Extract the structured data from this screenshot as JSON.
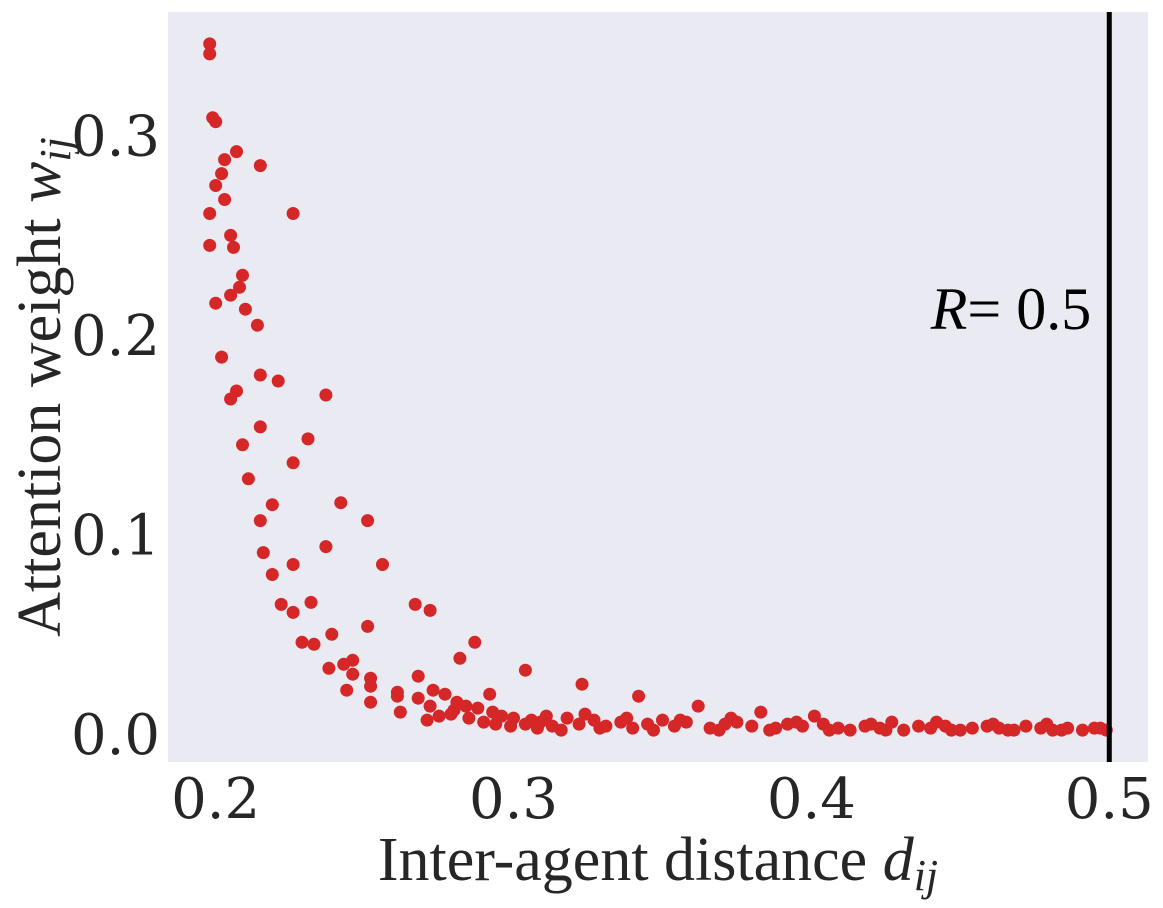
{
  "chart_data": {
    "type": "scatter",
    "xlabel": "Inter-agent distance",
    "xlabel_symbol": "d",
    "xlabel_subscript": "ij",
    "ylabel": "Attention weight",
    "ylabel_symbol": "w",
    "ylabel_subscript": "ij",
    "xlim": [
      0.184,
      0.513
    ],
    "ylim": [
      -0.014,
      0.362
    ],
    "xticks": [
      0.2,
      0.3,
      0.4,
      0.5
    ],
    "xtick_labels": [
      "0.2",
      "0.3",
      "0.4",
      "0.5"
    ],
    "yticks": [
      0.0,
      0.1,
      0.2,
      0.3
    ],
    "ytick_labels": [
      "0.0",
      "0.1",
      "0.2",
      "0.3"
    ],
    "grid": false,
    "background_color": "#eaeaf2",
    "point_color": "#d62728",
    "vline": {
      "x": 0.5,
      "color": "#000000",
      "label_symbol": "R",
      "label_text": "= 0.5"
    },
    "points": [
      [
        0.198,
        0.346
      ],
      [
        0.198,
        0.341
      ],
      [
        0.199,
        0.309
      ],
      [
        0.2,
        0.307
      ],
      [
        0.203,
        0.288
      ],
      [
        0.202,
        0.281
      ],
      [
        0.207,
        0.292
      ],
      [
        0.215,
        0.285
      ],
      [
        0.2,
        0.275
      ],
      [
        0.203,
        0.268
      ],
      [
        0.198,
        0.261
      ],
      [
        0.226,
        0.261
      ],
      [
        0.205,
        0.25
      ],
      [
        0.198,
        0.245
      ],
      [
        0.206,
        0.244
      ],
      [
        0.209,
        0.23
      ],
      [
        0.208,
        0.224
      ],
      [
        0.205,
        0.22
      ],
      [
        0.2,
        0.216
      ],
      [
        0.21,
        0.213
      ],
      [
        0.214,
        0.205
      ],
      [
        0.202,
        0.189
      ],
      [
        0.215,
        0.18
      ],
      [
        0.221,
        0.177
      ],
      [
        0.207,
        0.172
      ],
      [
        0.205,
        0.168
      ],
      [
        0.237,
        0.17
      ],
      [
        0.215,
        0.154
      ],
      [
        0.231,
        0.148
      ],
      [
        0.209,
        0.145
      ],
      [
        0.226,
        0.136
      ],
      [
        0.211,
        0.128
      ],
      [
        0.242,
        0.116
      ],
      [
        0.219,
        0.115
      ],
      [
        0.215,
        0.107
      ],
      [
        0.251,
        0.107
      ],
      [
        0.237,
        0.094
      ],
      [
        0.216,
        0.091
      ],
      [
        0.226,
        0.085
      ],
      [
        0.256,
        0.085
      ],
      [
        0.219,
        0.08
      ],
      [
        0.222,
        0.065
      ],
      [
        0.232,
        0.066
      ],
      [
        0.226,
        0.061
      ],
      [
        0.267,
        0.065
      ],
      [
        0.272,
        0.062
      ],
      [
        0.251,
        0.054
      ],
      [
        0.239,
        0.05
      ],
      [
        0.229,
        0.046
      ],
      [
        0.233,
        0.045
      ],
      [
        0.287,
        0.046
      ],
      [
        0.246,
        0.037
      ],
      [
        0.282,
        0.038
      ],
      [
        0.238,
        0.033
      ],
      [
        0.243,
        0.035
      ],
      [
        0.246,
        0.03
      ],
      [
        0.252,
        0.028
      ],
      [
        0.268,
        0.029
      ],
      [
        0.304,
        0.032
      ],
      [
        0.244,
        0.022
      ],
      [
        0.252,
        0.024
      ],
      [
        0.261,
        0.021
      ],
      [
        0.268,
        0.018
      ],
      [
        0.252,
        0.016
      ],
      [
        0.261,
        0.019
      ],
      [
        0.292,
        0.02
      ],
      [
        0.323,
        0.025
      ],
      [
        0.342,
        0.019
      ],
      [
        0.262,
        0.011
      ],
      [
        0.272,
        0.014
      ],
      [
        0.28,
        0.012
      ],
      [
        0.275,
        0.009
      ],
      [
        0.271,
        0.007
      ],
      [
        0.277,
        0.02
      ],
      [
        0.273,
        0.022
      ],
      [
        0.281,
        0.016
      ],
      [
        0.284,
        0.014
      ],
      [
        0.288,
        0.013
      ],
      [
        0.293,
        0.011
      ],
      [
        0.296,
        0.009
      ],
      [
        0.3,
        0.008
      ],
      [
        0.306,
        0.007
      ],
      [
        0.279,
        0.01
      ],
      [
        0.285,
        0.008
      ],
      [
        0.29,
        0.006
      ],
      [
        0.294,
        0.005
      ],
      [
        0.299,
        0.004
      ],
      [
        0.304,
        0.005
      ],
      [
        0.309,
        0.006
      ],
      [
        0.313,
        0.004
      ],
      [
        0.318,
        0.008
      ],
      [
        0.322,
        0.005
      ],
      [
        0.327,
        0.007
      ],
      [
        0.331,
        0.004
      ],
      [
        0.336,
        0.006
      ],
      [
        0.34,
        0.003
      ],
      [
        0.345,
        0.005
      ],
      [
        0.35,
        0.007
      ],
      [
        0.354,
        0.004
      ],
      [
        0.358,
        0.006
      ],
      [
        0.362,
        0.014
      ],
      [
        0.366,
        0.003
      ],
      [
        0.371,
        0.005
      ],
      [
        0.375,
        0.006
      ],
      [
        0.38,
        0.004
      ],
      [
        0.383,
        0.011
      ],
      [
        0.388,
        0.003
      ],
      [
        0.392,
        0.005
      ],
      [
        0.397,
        0.004
      ],
      [
        0.401,
        0.009
      ],
      [
        0.404,
        0.005
      ],
      [
        0.409,
        0.003
      ],
      [
        0.413,
        0.002
      ],
      [
        0.418,
        0.004
      ],
      [
        0.423,
        0.003
      ],
      [
        0.427,
        0.006
      ],
      [
        0.431,
        0.002
      ],
      [
        0.436,
        0.004
      ],
      [
        0.44,
        0.003
      ],
      [
        0.445,
        0.004
      ],
      [
        0.45,
        0.002
      ],
      [
        0.454,
        0.003
      ],
      [
        0.459,
        0.004
      ],
      [
        0.463,
        0.003
      ],
      [
        0.468,
        0.002
      ],
      [
        0.472,
        0.004
      ],
      [
        0.477,
        0.003
      ],
      [
        0.481,
        0.002
      ],
      [
        0.486,
        0.003
      ],
      [
        0.491,
        0.002
      ],
      [
        0.495,
        0.003
      ],
      [
        0.499,
        0.002
      ],
      [
        0.308,
        0.003
      ],
      [
        0.316,
        0.002
      ],
      [
        0.329,
        0.003
      ],
      [
        0.347,
        0.002
      ],
      [
        0.369,
        0.002
      ],
      [
        0.386,
        0.002
      ],
      [
        0.406,
        0.002
      ],
      [
        0.425,
        0.002
      ],
      [
        0.447,
        0.002
      ],
      [
        0.466,
        0.002
      ],
      [
        0.484,
        0.002
      ],
      [
        0.497,
        0.003
      ],
      [
        0.311,
        0.009
      ],
      [
        0.324,
        0.01
      ],
      [
        0.338,
        0.008
      ],
      [
        0.356,
        0.007
      ],
      [
        0.373,
        0.008
      ],
      [
        0.395,
        0.006
      ],
      [
        0.42,
        0.005
      ],
      [
        0.442,
        0.006
      ],
      [
        0.461,
        0.005
      ],
      [
        0.479,
        0.005
      ]
    ]
  }
}
